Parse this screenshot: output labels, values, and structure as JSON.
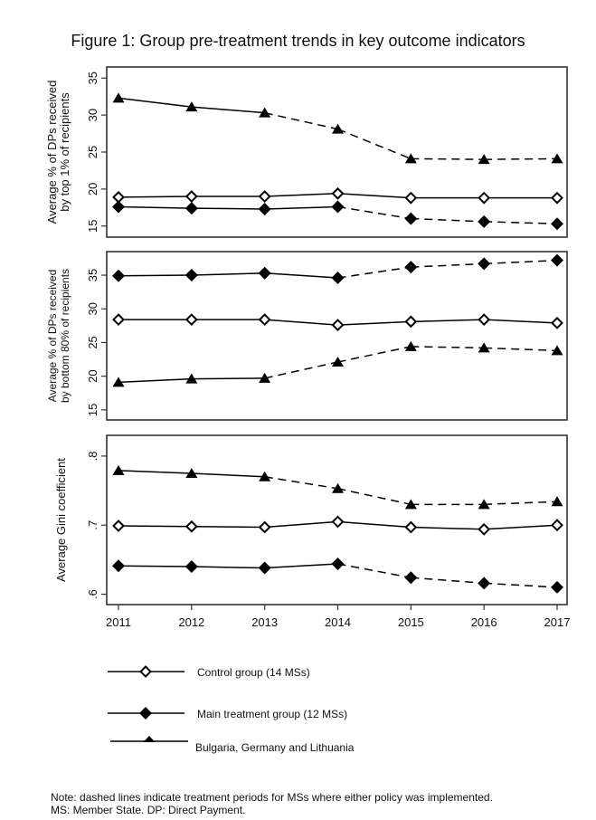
{
  "title": "Figure 1: Group pre-treatment trends in key outcome indicators",
  "note_line1": "Note: dashed lines indicate treatment periods for MSs where either policy was implemented.",
  "note_line2": "MS: Member State.  DP: Direct Payment.",
  "legend": [
    {
      "label": "Control group (14 MSs)",
      "marker": "hollow-diamond"
    },
    {
      "label": "Main treatment group (12 MSs)",
      "marker": "filled-diamond"
    },
    {
      "label": "Bulgaria, Germany and Lithuania",
      "marker": "filled-triangle"
    }
  ],
  "chart_data": [
    {
      "type": "line",
      "ylabel": [
        "Average % of DPs received",
        "by top 1% of recipients"
      ],
      "x": [
        2011,
        2012,
        2013,
        2014,
        2015,
        2016,
        2017
      ],
      "xtick_labels": [
        "2011",
        "2012",
        "2013",
        "2014",
        "2015",
        "2016",
        "2017"
      ],
      "ylim": [
        13.5,
        36.5
      ],
      "yticks": [
        15,
        20,
        25,
        30,
        35
      ],
      "ytick_labels": [
        "15",
        "20",
        "25",
        "30",
        "35"
      ],
      "series": [
        {
          "name": "Control group (14 MSs)",
          "marker": "hollow-diamond",
          "values": [
            18.9,
            19.0,
            19.0,
            19.4,
            18.8,
            18.8,
            18.8
          ],
          "dashed_from_index": null
        },
        {
          "name": "Main treatment group (12 MSs)",
          "marker": "filled-diamond",
          "values": [
            17.6,
            17.4,
            17.3,
            17.6,
            16.0,
            15.6,
            15.3
          ],
          "dashed_from_index": 3
        },
        {
          "name": "Bulgaria, Germany and Lithuania",
          "marker": "filled-triangle",
          "values": [
            32.3,
            31.1,
            30.3,
            28.1,
            24.1,
            24.0,
            24.1
          ],
          "dashed_from_index": 2
        }
      ]
    },
    {
      "type": "line",
      "ylabel": [
        "Average % of DPs received",
        "by bottom 80% of recipients"
      ],
      "x": [
        2011,
        2012,
        2013,
        2014,
        2015,
        2016,
        2017
      ],
      "xtick_labels": [
        "2011",
        "2012",
        "2013",
        "2014",
        "2015",
        "2016",
        "2017"
      ],
      "ylim": [
        13.5,
        38.5
      ],
      "yticks": [
        15,
        20,
        25,
        30,
        35
      ],
      "ytick_labels": [
        "15",
        "20",
        "25",
        "30",
        "35"
      ],
      "series": [
        {
          "name": "Control group (14 MSs)",
          "marker": "hollow-diamond",
          "values": [
            28.4,
            28.4,
            28.4,
            27.6,
            28.1,
            28.4,
            27.9
          ],
          "dashed_from_index": null
        },
        {
          "name": "Main treatment group (12 MSs)",
          "marker": "filled-diamond",
          "values": [
            34.9,
            35.0,
            35.3,
            34.6,
            36.2,
            36.7,
            37.2
          ],
          "dashed_from_index": 3
        },
        {
          "name": "Bulgaria, Germany and Lithuania",
          "marker": "filled-triangle",
          "values": [
            19.1,
            19.6,
            19.7,
            22.1,
            24.4,
            24.2,
            23.8
          ],
          "dashed_from_index": 2
        }
      ]
    },
    {
      "type": "line",
      "ylabel": [
        "Average Gini coefficient"
      ],
      "x": [
        2011,
        2012,
        2013,
        2014,
        2015,
        2016,
        2017
      ],
      "xtick_labels": [
        "2011",
        "2012",
        "2013",
        "2014",
        "2015",
        "2016",
        "2017"
      ],
      "ylim": [
        0.585,
        0.83
      ],
      "yticks": [
        0.6,
        0.7,
        0.8
      ],
      "ytick_labels": [
        ".6",
        ".7",
        ".8"
      ],
      "series": [
        {
          "name": "Control group (14 MSs)",
          "marker": "hollow-diamond",
          "values": [
            0.699,
            0.698,
            0.697,
            0.705,
            0.697,
            0.694,
            0.7
          ],
          "dashed_from_index": null
        },
        {
          "name": "Main treatment group (12 MSs)",
          "marker": "filled-diamond",
          "values": [
            0.641,
            0.64,
            0.638,
            0.644,
            0.624,
            0.616,
            0.61
          ],
          "dashed_from_index": 3
        },
        {
          "name": "Bulgaria, Germany and Lithuania",
          "marker": "filled-triangle",
          "values": [
            0.779,
            0.775,
            0.77,
            0.753,
            0.73,
            0.73,
            0.734
          ],
          "dashed_from_index": 2
        }
      ]
    }
  ]
}
